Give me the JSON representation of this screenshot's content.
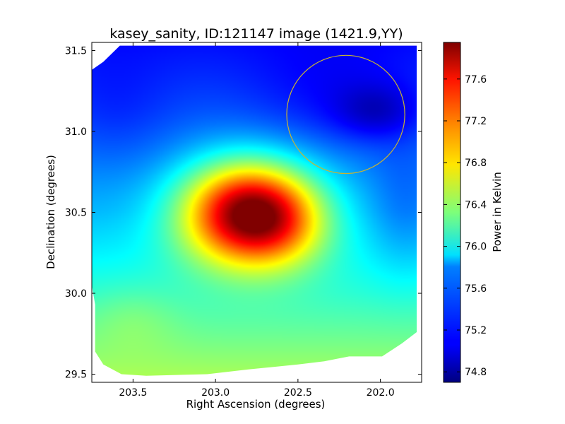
{
  "chart_data": {
    "type": "heatmap",
    "title": "kasey_sanity, ID:121147 image (1421.9,YY)",
    "xlabel": "Right Ascension (degrees)",
    "ylabel": "Declination (degrees)",
    "xlim": [
      203.75,
      201.75
    ],
    "ylim": [
      29.45,
      31.55
    ],
    "xticks": [
      {
        "value": 203.5,
        "label": "203.5"
      },
      {
        "value": 203.0,
        "label": "203.0"
      },
      {
        "value": 202.5,
        "label": "202.5"
      },
      {
        "value": 202.0,
        "label": "202.0"
      }
    ],
    "yticks": [
      {
        "value": 29.5,
        "label": "29.5"
      },
      {
        "value": 30.0,
        "label": "30.0"
      },
      {
        "value": 30.5,
        "label": "30.5"
      },
      {
        "value": 31.0,
        "label": "31.0"
      },
      {
        "value": 31.5,
        "label": "31.5"
      }
    ],
    "colorbar": {
      "label": "Power in Kelvin",
      "range": [
        74.7,
        77.95
      ],
      "colormap": "jet",
      "ticks": [
        {
          "value": 74.8,
          "label": "74.8"
        },
        {
          "value": 75.2,
          "label": "75.2"
        },
        {
          "value": 75.6,
          "label": "75.6"
        },
        {
          "value": 76.0,
          "label": "76.0"
        },
        {
          "value": 76.4,
          "label": "76.4"
        },
        {
          "value": 76.8,
          "label": "76.8"
        },
        {
          "value": 77.2,
          "label": "77.2"
        },
        {
          "value": 77.6,
          "label": "77.6"
        }
      ]
    },
    "field": {
      "baseline": 75.7,
      "dec_gradient": [
        {
          "dec": 31.55,
          "offset": -0.55
        },
        {
          "dec": 31.0,
          "offset": -0.25
        },
        {
          "dec": 30.5,
          "offset": 0.0
        },
        {
          "dec": 30.0,
          "offset": 0.35
        },
        {
          "dec": 29.5,
          "offset": 0.75
        }
      ],
      "components": [
        {
          "ra": 202.8,
          "dec": 30.5,
          "sigma_ra": 0.28,
          "sigma_dec": 0.22,
          "amplitude": 2.25
        },
        {
          "ra": 202.6,
          "dec": 30.42,
          "sigma_ra": 0.2,
          "sigma_dec": 0.18,
          "amplitude": 0.35
        },
        {
          "ra": 202.02,
          "dec": 31.12,
          "sigma_ra": 0.18,
          "sigma_dec": 0.12,
          "amplitude": -0.35
        },
        {
          "ra": 202.3,
          "dec": 31.2,
          "sigma_ra": 0.35,
          "sigma_dec": 0.25,
          "amplitude": -0.2
        },
        {
          "ra": 203.6,
          "dec": 31.1,
          "sigma_ra": 0.25,
          "sigma_dec": 0.25,
          "amplitude": -0.15
        },
        {
          "ra": 201.85,
          "dec": 30.5,
          "sigma_ra": 0.15,
          "sigma_dec": 0.3,
          "amplitude": -0.2
        },
        {
          "ra": 203.5,
          "dec": 29.85,
          "sigma_ra": 0.2,
          "sigma_dec": 0.15,
          "amplitude": 0.15
        }
      ]
    },
    "coverage_boundary": [
      [
        203.58,
        31.53
      ],
      [
        201.78,
        31.53
      ],
      [
        201.78,
        29.76
      ],
      [
        201.87,
        29.69
      ],
      [
        201.99,
        29.61
      ],
      [
        202.19,
        29.61
      ],
      [
        202.34,
        29.58
      ],
      [
        202.5,
        29.56
      ],
      [
        202.8,
        29.53
      ],
      [
        203.05,
        29.5
      ],
      [
        203.42,
        29.49
      ],
      [
        203.57,
        29.5
      ],
      [
        203.68,
        29.56
      ],
      [
        203.73,
        29.64
      ],
      [
        203.73,
        29.93
      ],
      [
        203.75,
        30.05
      ],
      [
        203.75,
        31.38
      ],
      [
        203.68,
        31.43
      ]
    ],
    "annotation_circle": {
      "ra": 202.21,
      "dec": 31.105,
      "radius_deg": 0.365,
      "color": "#c8b432"
    }
  }
}
